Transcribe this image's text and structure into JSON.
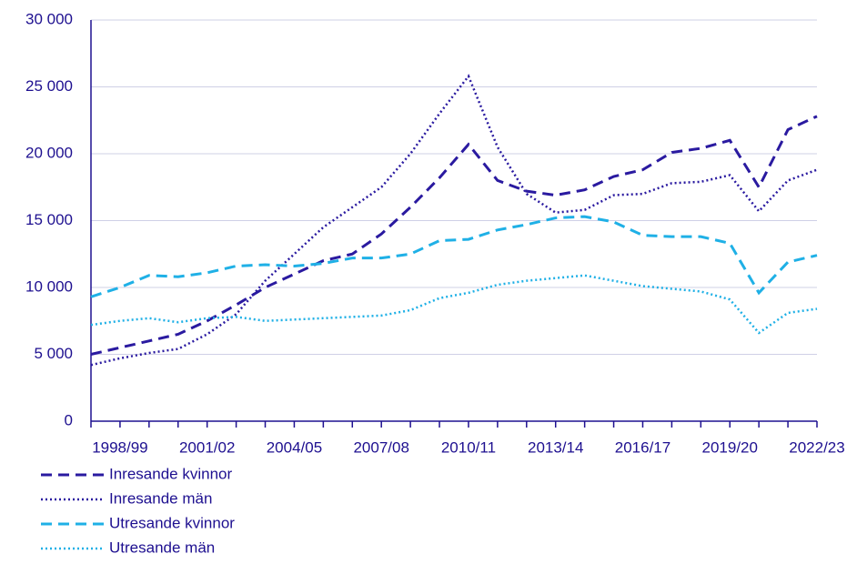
{
  "chart_data": {
    "type": "line",
    "categories": [
      null,
      "1998/99",
      null,
      null,
      "2001/02",
      null,
      null,
      "2004/05",
      null,
      null,
      "2007/08",
      null,
      null,
      "2010/11",
      null,
      null,
      "2013/14",
      null,
      null,
      "2016/17",
      null,
      null,
      "2019/20",
      null,
      null,
      "2022/23"
    ],
    "series": [
      {
        "name": "Inresande kvinnor",
        "color": "#2a1aa0",
        "dash": "dashed",
        "values": [
          5000,
          5500,
          6000,
          6500,
          7500,
          8700,
          10000,
          11000,
          12000,
          12500,
          14000,
          16000,
          18200,
          20700,
          18000,
          17200,
          16900,
          17300,
          18300,
          18800,
          20100,
          20400,
          21000,
          17500,
          21800,
          22800
        ]
      },
      {
        "name": "Inresande män",
        "color": "#2a1aa0",
        "dash": "dotted",
        "values": [
          4200,
          4700,
          5100,
          5400,
          6500,
          8000,
          10500,
          12500,
          14500,
          16000,
          17500,
          20000,
          23000,
          25800,
          20500,
          17000,
          15600,
          15800,
          16900,
          17000,
          17800,
          17900,
          18400,
          15700,
          18000,
          18800
        ]
      },
      {
        "name": "Utresande kvinnor",
        "color": "#1fb0e6",
        "dash": "dashed",
        "values": [
          9300,
          10000,
          10900,
          10800,
          11100,
          11600,
          11700,
          11600,
          11800,
          12200,
          12200,
          12500,
          13500,
          13600,
          14300,
          14700,
          15200,
          15300,
          14900,
          13900,
          13800,
          13800,
          13300,
          9600,
          11900,
          12400
        ]
      },
      {
        "name": "Utresande män",
        "color": "#1fb0e6",
        "dash": "dotted",
        "values": [
          7200,
          7500,
          7700,
          7400,
          7700,
          7800,
          7500,
          7600,
          7700,
          7800,
          7900,
          8300,
          9200,
          9600,
          10200,
          10500,
          10700,
          10900,
          10500,
          10100,
          9900,
          9700,
          9100,
          6600,
          8100,
          8400
        ]
      }
    ],
    "ylim": [
      0,
      30000
    ],
    "yticks": [
      0,
      {
        "value": 5000,
        "label": "5 000"
      },
      {
        "value": 10000,
        "label": "10 000"
      },
      {
        "value": 15000,
        "label": "15 000"
      },
      {
        "value": 20000,
        "label": "20 000"
      },
      {
        "value": 25000,
        "label": "25 000"
      },
      {
        "value": 30000,
        "label": "30 000"
      }
    ],
    "grid": true,
    "legend": "bottom"
  }
}
